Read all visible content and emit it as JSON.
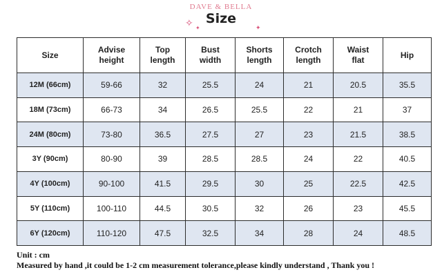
{
  "header": {
    "brand": "DAVE & BELLA",
    "title": "Size"
  },
  "colors": {
    "row_shade": "#dfe6f1",
    "accent": "#d9537a",
    "border": "#2b2b2b"
  },
  "icons": [
    "sparkle-icon"
  ],
  "table": {
    "columns": [
      [
        "Size"
      ],
      [
        "Advise",
        "height"
      ],
      [
        "Top",
        "length"
      ],
      [
        "Bust",
        "width"
      ],
      [
        "Shorts",
        "length"
      ],
      [
        "Crotch",
        "length"
      ],
      [
        "Waist",
        "flat"
      ],
      [
        "Hip"
      ]
    ],
    "rows": [
      [
        "12M (66cm)",
        "59-66",
        "32",
        "25.5",
        "24",
        "21",
        "20.5",
        "35.5"
      ],
      [
        "18M (73cm)",
        "66-73",
        "34",
        "26.5",
        "25.5",
        "22",
        "21",
        "37"
      ],
      [
        "24M (80cm)",
        "73-80",
        "36.5",
        "27.5",
        "27",
        "23",
        "21.5",
        "38.5"
      ],
      [
        "3Y (90cm)",
        "80-90",
        "39",
        "28.5",
        "28.5",
        "24",
        "22",
        "40.5"
      ],
      [
        "4Y (100cm)",
        "90-100",
        "41.5",
        "29.5",
        "30",
        "25",
        "22.5",
        "42.5"
      ],
      [
        "5Y (110cm)",
        "100-110",
        "44.5",
        "30.5",
        "32",
        "26",
        "23",
        "45.5"
      ],
      [
        "6Y (120cm)",
        "110-120",
        "47.5",
        "32.5",
        "34",
        "28",
        "24",
        "48.5"
      ]
    ]
  },
  "notes": {
    "unit": "Unit : cm",
    "disclaimer": "Measured by hand ,it could be 1-2 cm measurement tolerance,please kindly understand , Thank you !"
  }
}
